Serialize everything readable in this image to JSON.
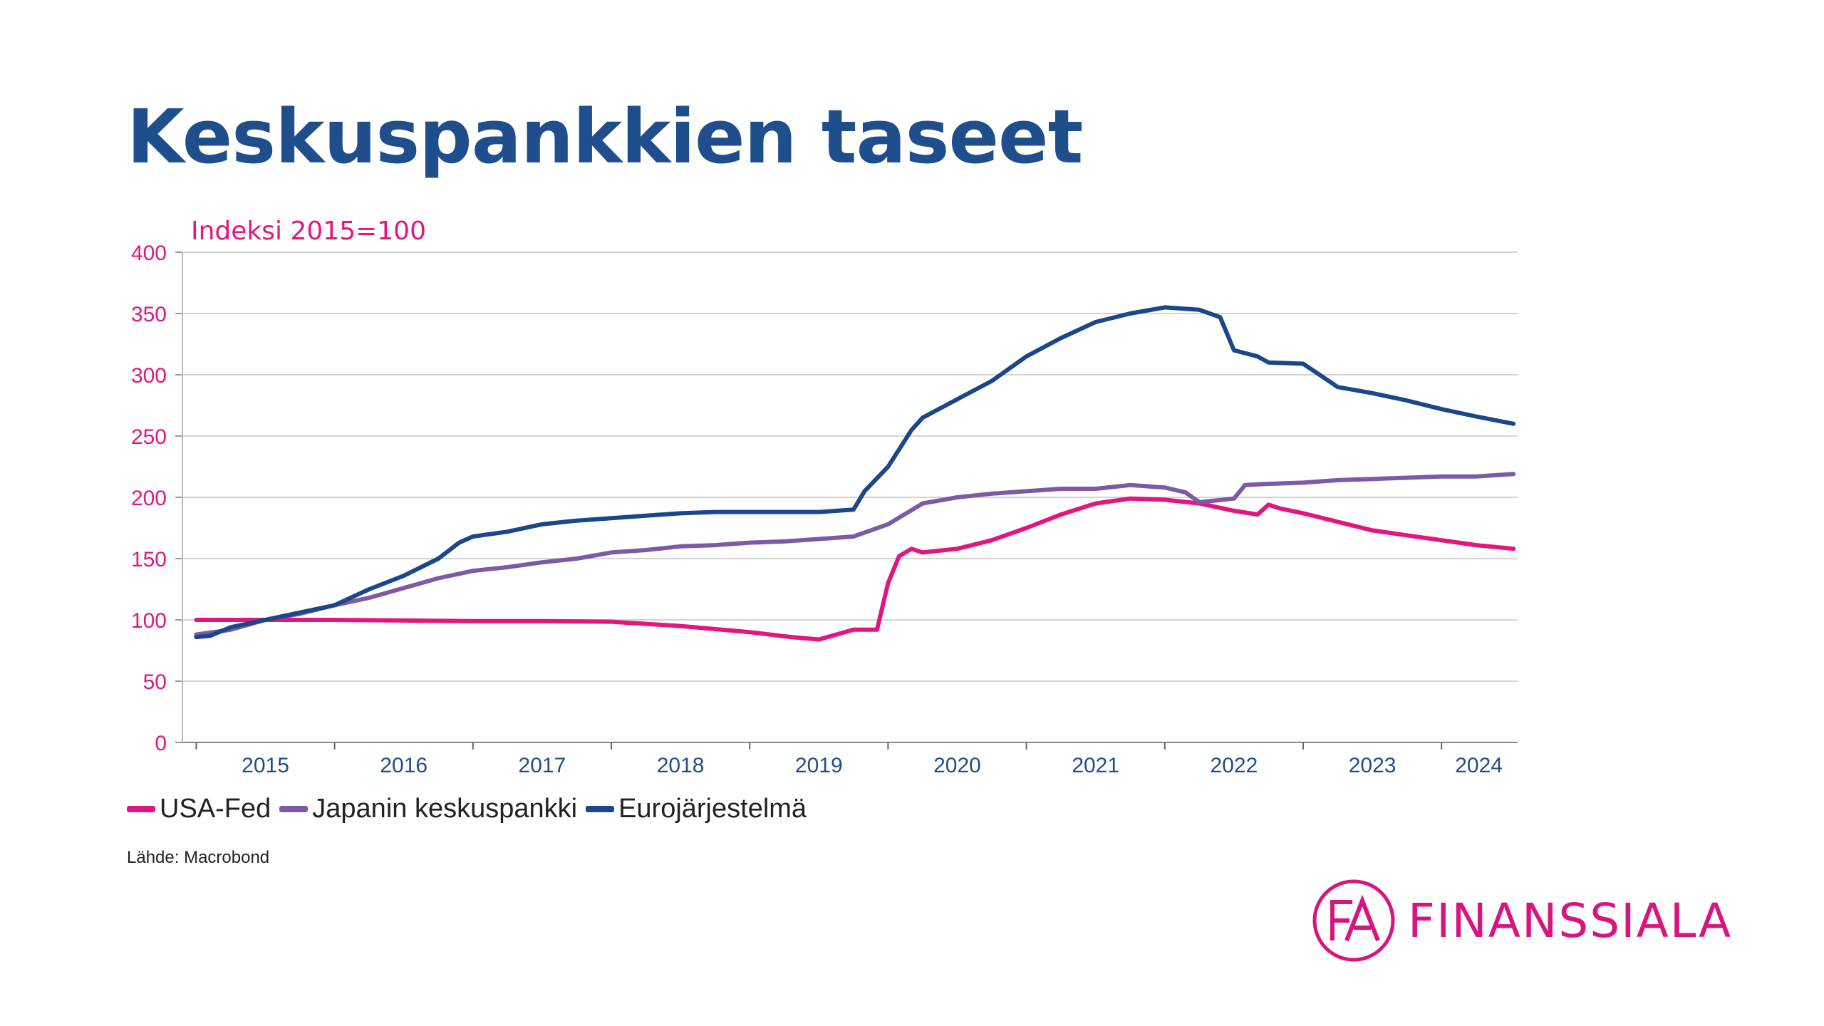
{
  "slide": {
    "title": "Keskuspankkien taseet",
    "source": "Lähde: Macrobond"
  },
  "logo": {
    "mark": "FA",
    "name": "FINANSSIALA",
    "color": "#d6157f"
  },
  "chart_data": {
    "type": "line",
    "subtitle": "Indeksi 2015=100",
    "ylim": [
      0,
      400
    ],
    "yticks": [
      0,
      50,
      100,
      150,
      200,
      250,
      300,
      350,
      400
    ],
    "xlim": [
      2014.9,
      2024.55
    ],
    "xticks": [
      "2015",
      "2016",
      "2017",
      "2018",
      "2019",
      "2020",
      "2021",
      "2022",
      "2023",
      "2024"
    ],
    "grid": true,
    "legend_position": "bottom-left",
    "series": [
      {
        "name": "USA-Fed",
        "color": "#e3157f",
        "x": [
          2015.0,
          2015.5,
          2016.0,
          2016.5,
          2017.0,
          2017.5,
          2018.0,
          2018.5,
          2019.0,
          2019.3,
          2019.5,
          2019.75,
          2019.92,
          2020.0,
          2020.08,
          2020.17,
          2020.25,
          2020.5,
          2020.75,
          2021.0,
          2021.25,
          2021.5,
          2021.75,
          2022.0,
          2022.25,
          2022.5,
          2022.67,
          2022.75,
          2022.83,
          2023.0,
          2023.25,
          2023.5,
          2023.75,
          2024.0,
          2024.25,
          2024.52
        ],
        "y": [
          100,
          100,
          100,
          99.5,
          99,
          99,
          98.5,
          95,
          90,
          86,
          84,
          92,
          92,
          130,
          152,
          158,
          155,
          158,
          165,
          175,
          186,
          195,
          199,
          198,
          195,
          189,
          186,
          194,
          191,
          187,
          180,
          173,
          169,
          165,
          161,
          158
        ]
      },
      {
        "name": "Japanin keskuspankki",
        "color": "#7e5aa6",
        "x": [
          2015.0,
          2015.25,
          2015.5,
          2015.75,
          2016.0,
          2016.25,
          2016.5,
          2016.75,
          2017.0,
          2017.25,
          2017.5,
          2017.75,
          2018.0,
          2018.25,
          2018.5,
          2018.75,
          2019.0,
          2019.25,
          2019.5,
          2019.75,
          2020.0,
          2020.25,
          2020.5,
          2020.75,
          2021.0,
          2021.25,
          2021.5,
          2021.75,
          2022.0,
          2022.15,
          2022.25,
          2022.5,
          2022.58,
          2022.75,
          2023.0,
          2023.25,
          2023.5,
          2023.75,
          2024.0,
          2024.25,
          2024.52
        ],
        "y": [
          88,
          92,
          100,
          105,
          112,
          118,
          126,
          134,
          140,
          143,
          147,
          150,
          155,
          157,
          160,
          161,
          163,
          164,
          166,
          168,
          178,
          195,
          200,
          203,
          205,
          207,
          207,
          210,
          208,
          204,
          196,
          199,
          210,
          211,
          212,
          214,
          215,
          216,
          217,
          217,
          219
        ]
      },
      {
        "name": "Eurojärjestelmä",
        "color": "#1a4789",
        "x": [
          2015.0,
          2015.1,
          2015.25,
          2015.5,
          2015.75,
          2016.0,
          2016.25,
          2016.5,
          2016.75,
          2016.9,
          2017.0,
          2017.25,
          2017.5,
          2017.75,
          2018.0,
          2018.25,
          2018.5,
          2018.75,
          2019.0,
          2019.25,
          2019.5,
          2019.75,
          2019.83,
          2020.0,
          2020.17,
          2020.25,
          2020.5,
          2020.75,
          2021.0,
          2021.25,
          2021.5,
          2021.75,
          2022.0,
          2022.25,
          2022.4,
          2022.5,
          2022.67,
          2022.75,
          2023.0,
          2023.25,
          2023.5,
          2023.75,
          2024.0,
          2024.25,
          2024.52
        ],
        "y": [
          86,
          87,
          94,
          100,
          106,
          112,
          125,
          136,
          150,
          163,
          168,
          172,
          178,
          181,
          183,
          185,
          187,
          188,
          188,
          188,
          188,
          190,
          205,
          225,
          255,
          265,
          280,
          295,
          315,
          330,
          343,
          350,
          355,
          353,
          347,
          320,
          315,
          310,
          309,
          290,
          285,
          279,
          272,
          266,
          260
        ]
      }
    ]
  }
}
